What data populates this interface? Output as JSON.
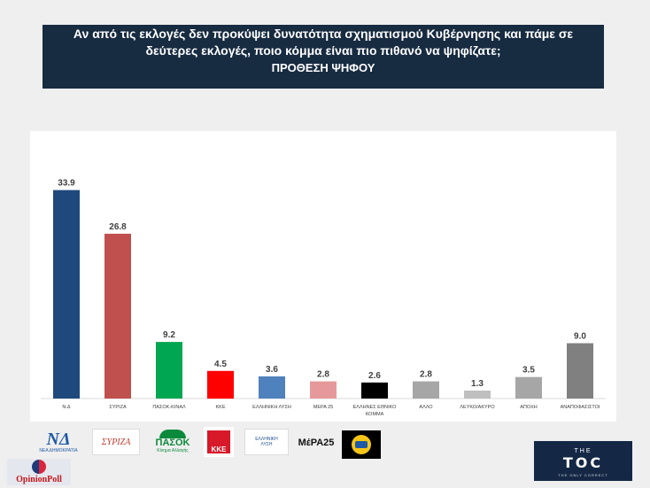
{
  "header": {
    "question": "Αν από τις εκλογές δεν προκύψει δυνατότητα σχηματισμού Κυβέρνησης και πάμε σε δεύτερες εκλογές, ποιο κόμμα είναι πιο πιθανό να ψηφίζατε;",
    "subtitle": "ΠΡΟΘΕΣΗ ΨΗΦΟΥ"
  },
  "chart_data": {
    "type": "bar",
    "categories": [
      "Ν.Δ",
      "ΣΥΡΙΖΑ",
      "ΠΑΣΟΚ-ΚΙΝΑΛ",
      "ΚΚΕ",
      "ΕΛΛΗΝΙΚΗ ΛΥΣΗ",
      "ΜΕΡΑ 25",
      "ΕΛΛΗΝΕΣ ΕΘΝΙΚΟ ΚΟΜΜΑ",
      "ΑΛΛΟ",
      "ΛΕΥΚΟ/ΑΚΥΡΟ",
      "ΑΠΟΧΗ",
      "ΑΝΑΠΟΦΑΣΙΣΤΟΙ"
    ],
    "values": [
      33.9,
      26.8,
      9.2,
      4.5,
      3.6,
      2.8,
      2.6,
      2.8,
      1.3,
      3.5,
      9.0
    ],
    "labels": [
      "33.9",
      "26.8",
      "9.2",
      "4.5",
      "3.6",
      "2.8",
      "2.6",
      "2.8",
      "1.3",
      "3.5",
      "9.0"
    ],
    "colors": [
      "#1f497d",
      "#c0504d",
      "#00a651",
      "#ff0000",
      "#4f81bd",
      "#e6999a",
      "#000000",
      "#a6a6a6",
      "#bfbfbf",
      "#a6a6a6",
      "#808080"
    ],
    "ylim": [
      0,
      36
    ],
    "grid": false
  },
  "logos": {
    "nd": "ΝΔ",
    "nd_sub": "ΝΕΑ ΔΗΜΟΚΡΑΤΙΑ",
    "syriza": "ΣΥΡΙΖΑ",
    "pasok": "ΠΑΣΟΚ",
    "pasok_sub": "Κίνημα Αλλαγής",
    "kke": "ΚΚΕ",
    "elliniki_lysi": "ΕΛΛΗΝΙΚΗ ΛΥΣΗ",
    "mera25": "ΜέΡΑ25",
    "opinion_poll": "OpinionPoll",
    "toc_the": "THE",
    "toc_big": "TOC",
    "toc_small": "THE ONLY CORRECT"
  }
}
